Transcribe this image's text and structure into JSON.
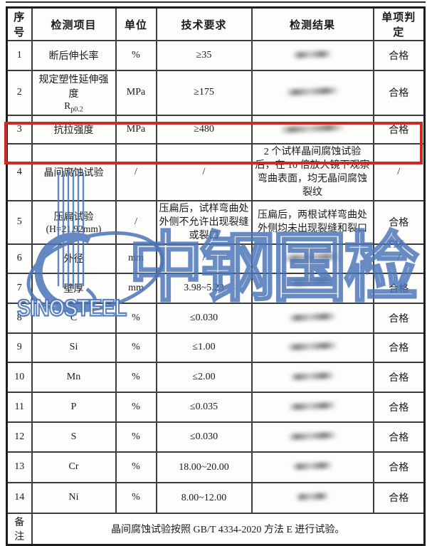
{
  "colors": {
    "highlight_box_red": "#cf2721",
    "watermark_blue": "#4a74b8",
    "table_border": "#3d3d3d",
    "judgment_text": "#1a1a1a"
  },
  "table": {
    "headers": [
      "序号",
      "检测项目",
      "单位",
      "技术要求",
      "检测结果",
      "单项判定"
    ],
    "rows": [
      {
        "no": "1",
        "item": "断后伸长率",
        "unit": "%",
        "requirement": "≥35",
        "result": "",
        "result_redacted": true,
        "judgment": "合格"
      },
      {
        "no": "2",
        "item": "规定塑性延伸强度",
        "item_line2_base": "R",
        "item_line2_sub": "p0.2",
        "unit": "MPa",
        "requirement": "≥175",
        "result": "",
        "result_redacted": true,
        "judgment": "合格"
      },
      {
        "no": "3",
        "item": "抗拉强度",
        "unit": "MPa",
        "requirement": "≥480",
        "result": "",
        "result_redacted": true,
        "judgment": "合格"
      },
      {
        "no": "4",
        "item": "晶间腐蚀试验",
        "unit": "/",
        "requirement": "/",
        "result": "2 个试样晶间腐蚀试验后，在 10 倍放大镜下观察弯曲表面，均无晶间腐蚀裂纹",
        "result_redacted": false,
        "judgment": "/",
        "highlighted": true
      },
      {
        "no": "5",
        "item": "压扁试验",
        "item_line2": "(H=21.92mm)",
        "unit": "/",
        "requirement": "压扁后，试样弯曲处外侧不允许出现裂缝或裂口",
        "result": "压扁后，两根试样弯曲处外侧均未出现裂缝和裂口",
        "result_redacted": false,
        "judgment": "合格"
      },
      {
        "no": "6",
        "item": "外径",
        "unit": "mm",
        "requirement": "/",
        "result": "",
        "result_redacted": true,
        "judgment": "/"
      },
      {
        "no": "7",
        "item": "壁厚",
        "unit": "mm",
        "requirement": "3.98~5.23",
        "result": "",
        "result_redacted": true,
        "judgment": "合格"
      },
      {
        "no": "8",
        "item": "C",
        "unit": "%",
        "requirement": "≤0.030",
        "result": "",
        "result_redacted": true,
        "judgment": "合格"
      },
      {
        "no": "9",
        "item": "Si",
        "unit": "%",
        "requirement": "≤1.00",
        "result": "",
        "result_redacted": true,
        "judgment": "合格"
      },
      {
        "no": "10",
        "item": "Mn",
        "unit": "%",
        "requirement": "≤2.00",
        "result": "",
        "result_redacted": true,
        "judgment": "合格"
      },
      {
        "no": "11",
        "item": "P",
        "unit": "%",
        "requirement": "≤0.035",
        "result": "",
        "result_redacted": true,
        "judgment": "合格"
      },
      {
        "no": "12",
        "item": "S",
        "unit": "%",
        "requirement": "≤0.030",
        "result": "",
        "result_redacted": true,
        "judgment": "合格"
      },
      {
        "no": "13",
        "item": "Cr",
        "unit": "%",
        "requirement": "18.00~20.00",
        "result": "",
        "result_redacted": true,
        "judgment": "合格"
      },
      {
        "no": "14",
        "item": "Ni",
        "unit": "%",
        "requirement": "8.00~12.00",
        "result": "",
        "result_redacted": true,
        "judgment": "合格"
      }
    ],
    "remark_label": "备注",
    "remark_text": "晶间腐蚀试验按照 GB/T 4334-2020 方法 E 进行试验。"
  },
  "watermark": {
    "brand_text": "中钢国检",
    "trademark": "TM",
    "logo_text": "SINOSTEEL"
  }
}
